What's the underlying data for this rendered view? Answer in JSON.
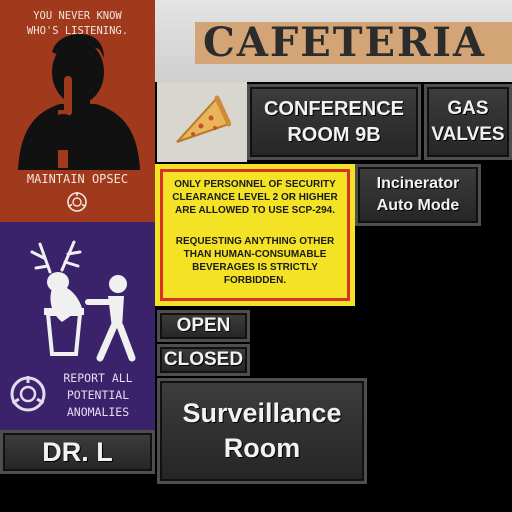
{
  "poster_opsec": {
    "top_text": "YOU NEVER KNOW\nWHO'S LISTENING.",
    "bottom_text": "MAINTAIN OPSEC",
    "background": "#a13a1c"
  },
  "poster_anomaly": {
    "text": "REPORT ALL\nPOTENTIAL\nANOMALIES",
    "background": "#3a236a"
  },
  "signs": {
    "cafeteria": "CAFETERIA",
    "conference_room": "CONFERENCE\nROOM 9B",
    "gas_valves": "GAS\nVALVES",
    "incinerator": "Incinerator\nAuto Mode",
    "open": "OPEN",
    "closed": "CLOSED",
    "surveillance": "Surveillance\nRoom",
    "name_plate": "DR. L"
  },
  "warning_notice": {
    "paragraph1": "ONLY PERSONNEL OF SECURITY CLEARANCE LEVEL 2 OR HIGHER ARE ALLOWED TO USE SCP-294.",
    "paragraph2": "REQUESTING ANYTHING OTHER THAN HUMAN-CONSUMABLE BEVERAGES IS STRICTLY FORBIDDEN.",
    "background": "#f4e325",
    "border": "#d8302a"
  },
  "icons": [
    "pizza-slice-icon",
    "scp-logo-icon",
    "silhouette-shush-icon",
    "trash-anomaly-icon"
  ]
}
